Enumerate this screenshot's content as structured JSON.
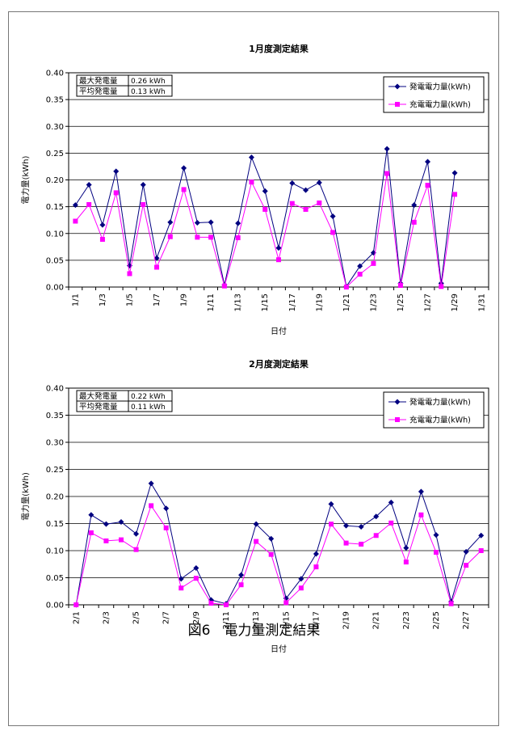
{
  "figure_caption": "図6　電力量測定結果",
  "chart_data": [
    {
      "type": "line",
      "title": "1月度測定結果",
      "xlabel": "日付",
      "ylabel": "電力量(kWh)",
      "ylim": [
        0,
        0.4
      ],
      "yticks": [
        "0.00",
        "0.05",
        "0.10",
        "0.15",
        "0.20",
        "0.25",
        "0.30",
        "0.35",
        "0.40"
      ],
      "x_count": 31,
      "xtick_labels": [
        "1/1",
        "1/3",
        "1/5",
        "1/7",
        "1/9",
        "1/11",
        "1/13",
        "1/15",
        "1/17",
        "1/19",
        "1/21",
        "1/23",
        "1/25",
        "1/27",
        "1/29",
        "1/31"
      ],
      "grid": true,
      "legend_position": "top-right",
      "info_box": [
        {
          "label": "最大発電量",
          "value": "0.26 kWh"
        },
        {
          "label": "平均発電量",
          "value": "0.13 kWh"
        }
      ],
      "series": [
        {
          "name": "発電電力量(kWh)",
          "color": "#000080",
          "marker": "diamond",
          "values": [
            0.153,
            0.191,
            0.116,
            0.216,
            0.04,
            0.191,
            0.054,
            0.121,
            0.222,
            0.12,
            0.121,
            0.004,
            0.119,
            0.242,
            0.179,
            0.073,
            0.194,
            0.181,
            0.195,
            0.132,
            0.001,
            0.039,
            0.064,
            0.258,
            0.007,
            0.153,
            0.234,
            0.007,
            0.213,
            null,
            null
          ]
        },
        {
          "name": "充電電力量(kWh)",
          "color": "#ff00ff",
          "marker": "square",
          "values": [
            0.123,
            0.154,
            0.089,
            0.176,
            0.025,
            0.154,
            0.037,
            0.094,
            0.182,
            0.093,
            0.093,
            0.002,
            0.092,
            0.196,
            0.145,
            0.051,
            0.156,
            0.145,
            0.157,
            0.102,
            0.0,
            0.024,
            0.044,
            0.212,
            0.003,
            0.121,
            0.19,
            0.001,
            0.173,
            null,
            null
          ]
        }
      ]
    },
    {
      "type": "line",
      "title": "2月度測定結果",
      "xlabel": "日付",
      "ylabel": "電力量(kWh)",
      "ylim": [
        0,
        0.4
      ],
      "yticks": [
        "0.00",
        "0.05",
        "0.10",
        "0.15",
        "0.20",
        "0.25",
        "0.30",
        "0.35",
        "0.40"
      ],
      "x_count": 28,
      "xtick_labels": [
        "2/1",
        "2/3",
        "2/5",
        "2/7",
        "2/9",
        "2/11",
        "2/13",
        "2/15",
        "2/17",
        "2/19",
        "2/21",
        "2/23",
        "2/25",
        "2/27"
      ],
      "grid": true,
      "legend_position": "top-right",
      "info_box": [
        {
          "label": "最大発電量",
          "value": "0.22 kWh"
        },
        {
          "label": "平均発電量",
          "value": "0.11 kWh"
        }
      ],
      "series": [
        {
          "name": "発電電力量(kWh)",
          "color": "#000080",
          "marker": "diamond",
          "values": [
            0.0,
            0.166,
            0.149,
            0.153,
            0.131,
            0.224,
            0.178,
            0.048,
            0.068,
            0.009,
            0.002,
            0.055,
            0.149,
            0.122,
            0.012,
            0.048,
            0.094,
            0.186,
            0.146,
            0.144,
            0.163,
            0.189,
            0.105,
            0.209,
            0.129,
            0.006,
            0.098,
            0.128
          ]
        },
        {
          "name": "充電電力量(kWh)",
          "color": "#ff00ff",
          "marker": "square",
          "values": [
            0.0,
            0.133,
            0.118,
            0.12,
            0.102,
            0.183,
            0.142,
            0.031,
            0.049,
            0.003,
            0.0,
            0.037,
            0.117,
            0.093,
            0.004,
            0.031,
            0.07,
            0.149,
            0.114,
            0.112,
            0.128,
            0.151,
            0.079,
            0.166,
            0.097,
            0.002,
            0.073,
            0.1
          ]
        }
      ]
    }
  ]
}
